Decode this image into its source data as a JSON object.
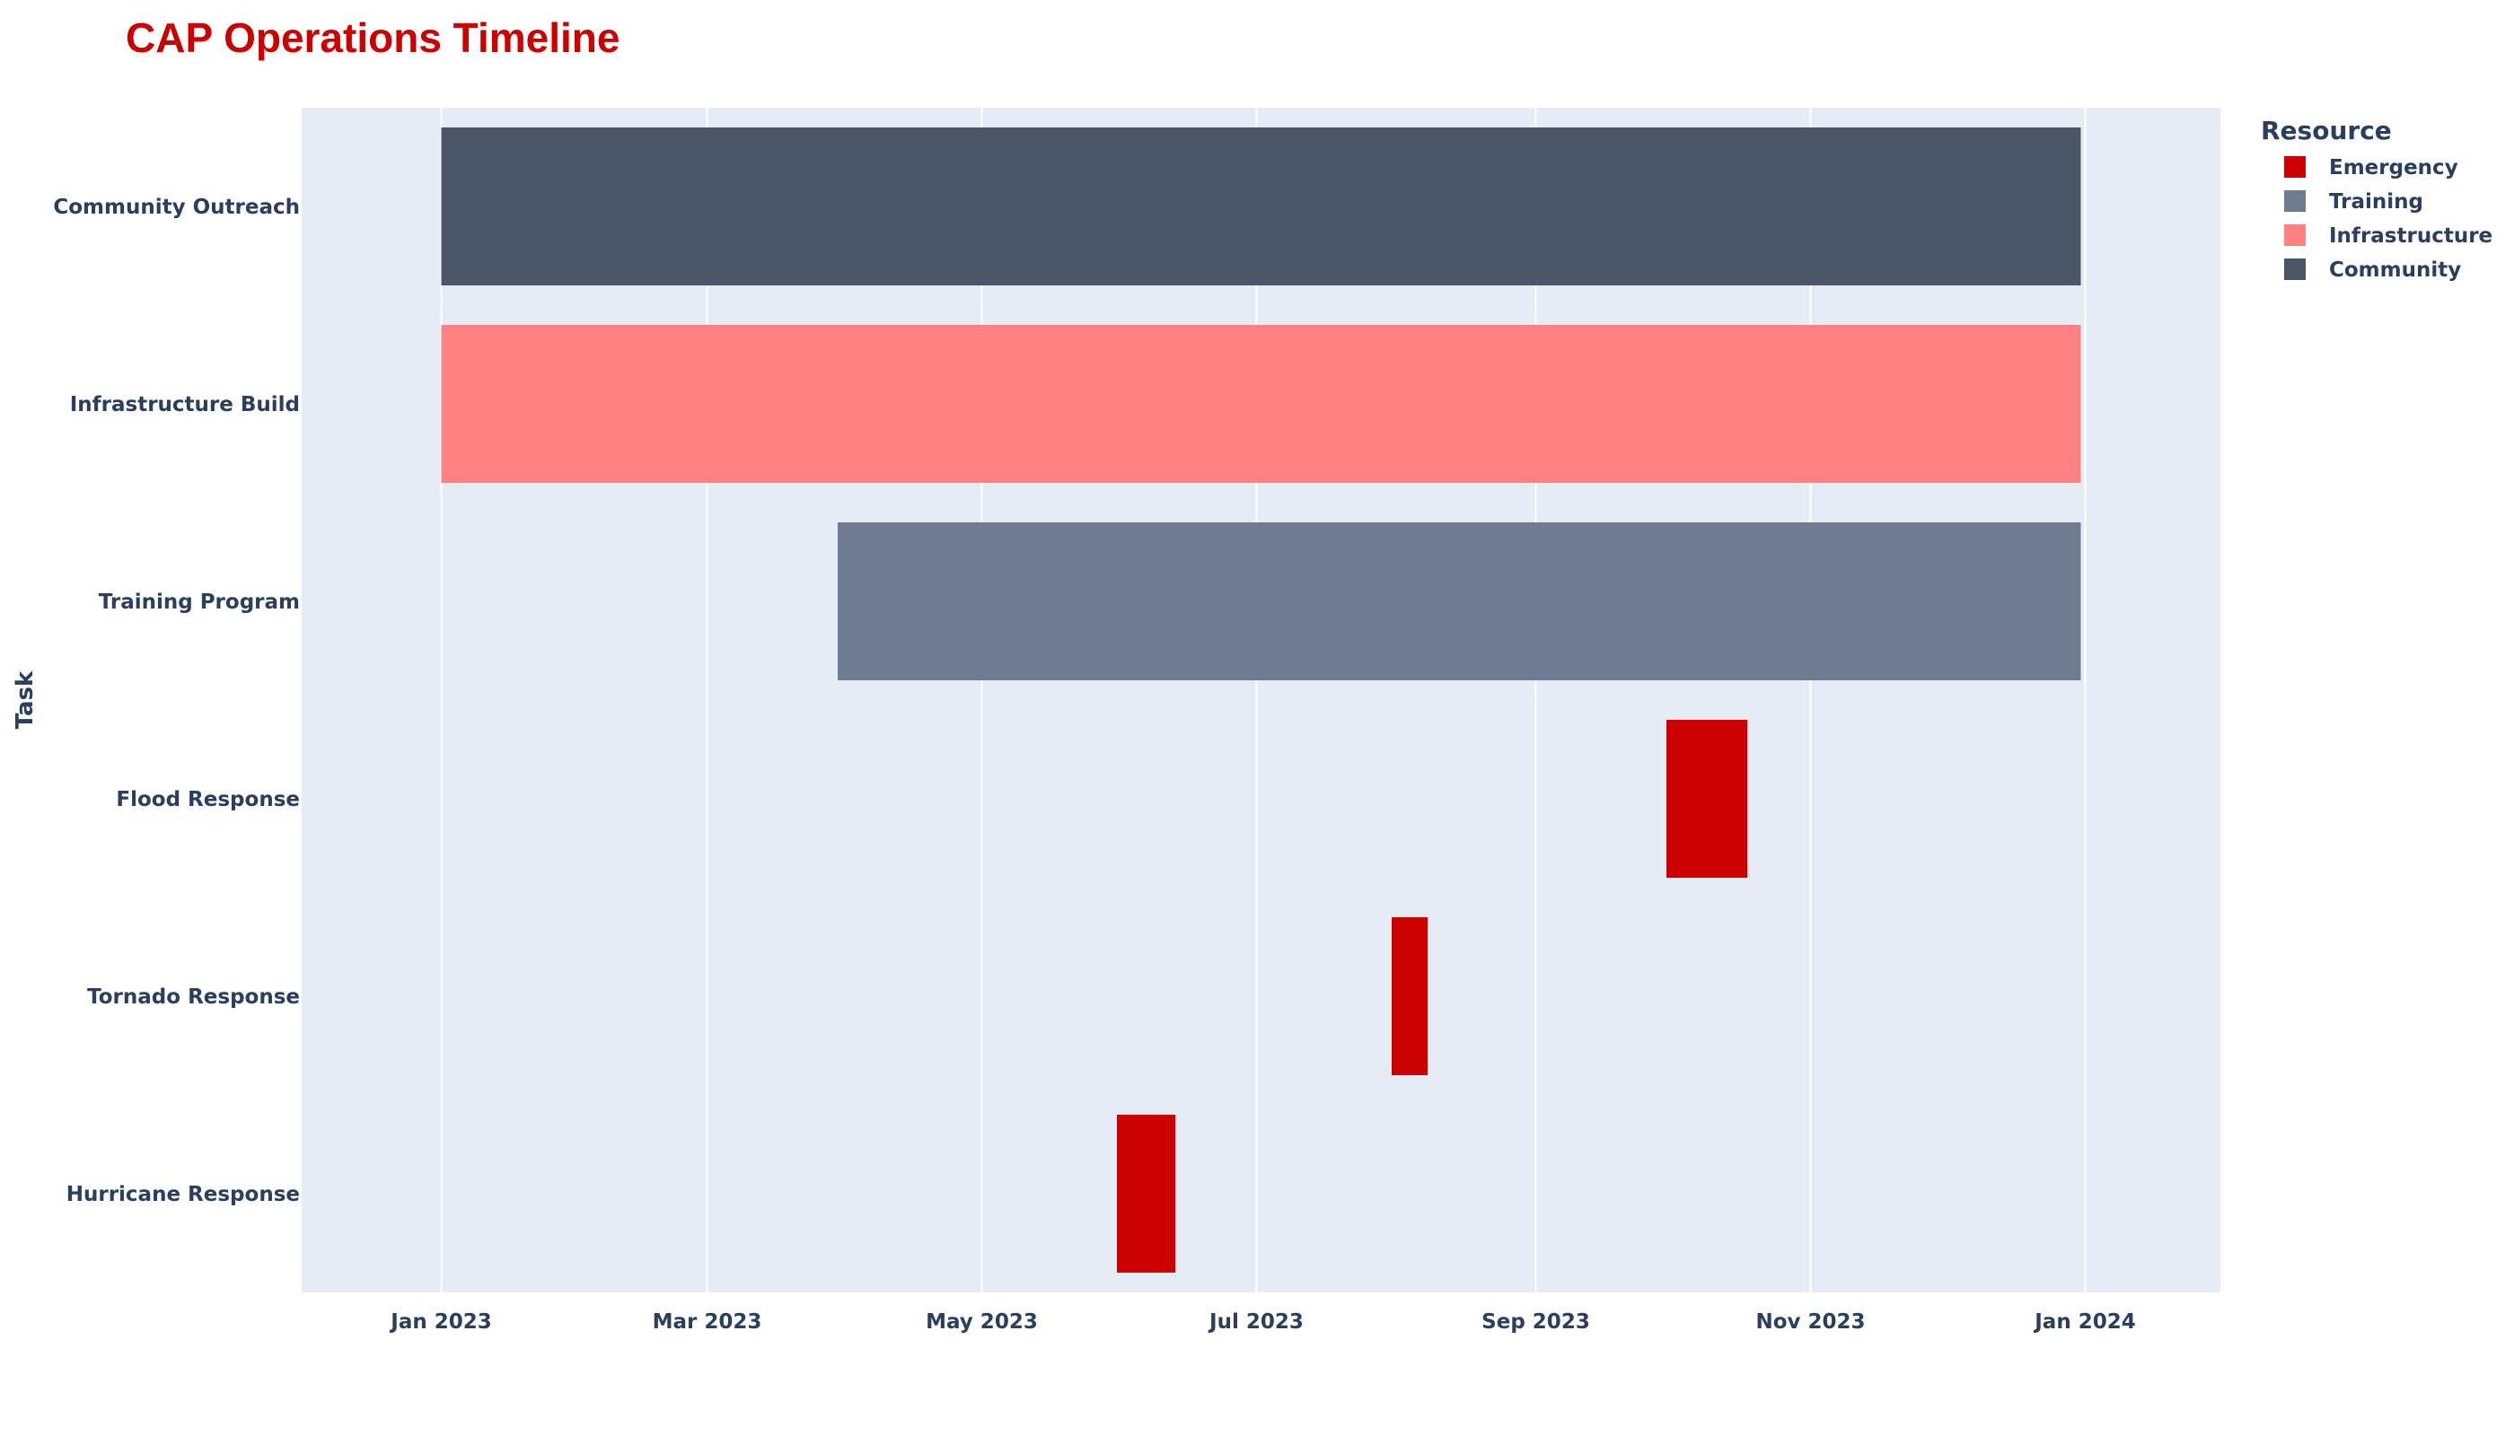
{
  "chart_data": {
    "type": "gantt",
    "title": "CAP Operations Timeline",
    "ylabel": "Task",
    "xlabel": "",
    "x_range": [
      "2022-12-01",
      "2024-01-31"
    ],
    "x_ticks": [
      {
        "date": "2023-01-01",
        "label": "Jan 2023"
      },
      {
        "date": "2023-03-01",
        "label": "Mar 2023"
      },
      {
        "date": "2023-05-01",
        "label": "May 2023"
      },
      {
        "date": "2023-07-01",
        "label": "Jul 2023"
      },
      {
        "date": "2023-09-01",
        "label": "Sep 2023"
      },
      {
        "date": "2023-11-01",
        "label": "Nov 2023"
      },
      {
        "date": "2024-01-01",
        "label": "Jan 2024"
      }
    ],
    "tasks": [
      {
        "task": "Community Outreach",
        "start": "2023-01-01",
        "end": "2023-12-31",
        "resource": "Community"
      },
      {
        "task": "Infrastructure Build",
        "start": "2023-01-01",
        "end": "2023-12-31",
        "resource": "Infrastructure"
      },
      {
        "task": "Training Program",
        "start": "2023-03-30",
        "end": "2023-12-31",
        "resource": "Training"
      },
      {
        "task": "Flood Response",
        "start": "2023-09-30",
        "end": "2023-10-18",
        "resource": "Emergency"
      },
      {
        "task": "Tornado Response",
        "start": "2023-07-31",
        "end": "2023-08-08",
        "resource": "Emergency"
      },
      {
        "task": "Hurricane Response",
        "start": "2023-05-31",
        "end": "2023-06-13",
        "resource": "Emergency"
      }
    ],
    "legend": {
      "title": "Resource",
      "position": "top-right",
      "items": [
        {
          "name": "Emergency",
          "color": "#CC0000"
        },
        {
          "name": "Training",
          "color": "#6E7B91"
        },
        {
          "name": "Infrastructure",
          "color": "#FF8080"
        },
        {
          "name": "Community",
          "color": "#4B5769"
        }
      ]
    },
    "colors": {
      "plot_background": "#E5ECF6",
      "grid": "#FFFFFF",
      "text": "#2A3F5F",
      "title": "#CC0000"
    },
    "grid": true
  }
}
